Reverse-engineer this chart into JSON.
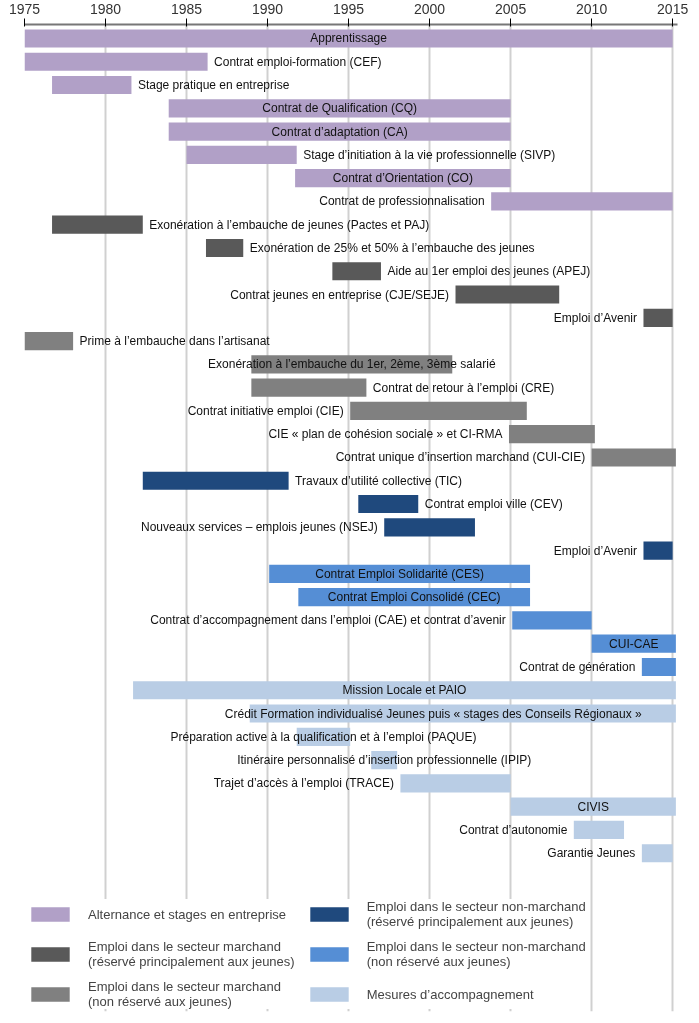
{
  "chart_data": {
    "type": "bar",
    "orientation": "horizontal",
    "categories": [
      "Apprentissage",
      "Contrat emploi-formation (CEF)",
      "Stage pratique en entreprise",
      "Contrat de Qualification (CQ)",
      "Contrat d’adaptation (CA)",
      "Stage d’initiation à la vie professionnelle (SIVP)",
      "Contrat d’Orientation (CO)",
      "Contrat de professionnalisation",
      "Exonération à l’embauche de jeunes (Pactes et PAJ)",
      "Exonération de 25% et 50% à l’embauche des jeunes",
      "Aide au 1er emploi des jeunes (APEJ)",
      "Contrat jeunes en entreprise (CJE/SEJE)",
      "Emploi d’Avenir",
      "Prime à l’embauche dans l’artisanat",
      "Exonération à l’embauche du 1er, 2ème, 3ème salarié",
      "Contrat de retour à l’emploi (CRE)",
      "Contrat initiative emploi (CIE)",
      "CIE « plan de cohésion sociale » et CI-RMA",
      "Contrat unique d’insertion marchand (CUI-CIE)",
      "Travaux d’utilité collective (TIC)",
      "Contrat emploi ville (CEV)",
      "Nouveaux services – emplois jeunes (NSEJ)",
      "Emploi d’Avenir",
      "Contrat Emploi Solidarité (CES)",
      "Contrat Emploi Consolidé (CEC)",
      "Contrat d’accompagnement dans l’emploi (CAE) et contrat d’avenir",
      "CUI-CAE",
      "Contrat de génération",
      "Mission Locale et PAIO",
      "Crédit Formation individualisé Jeunes puis « stages des Conseils Régionaux »",
      "Préparation active à la qualification et à l’emploi (PAQUE)",
      "Itinéraire personnalisé d’insertion professionnelle (IPIP)",
      "Trajet d’accès à l’emploi (TRACE)",
      "CIVIS",
      "Contrat d’autonomie",
      "Garantie Jeunes"
    ],
    "series": [
      {
        "name": "Alternance et stages en entreprise",
        "color": "#b1a0c7",
        "base": [
          1975,
          1975,
          1976.7,
          1983.9,
          1983.9,
          1985.0,
          1991.7,
          2003.8,
          null,
          null,
          null,
          null,
          null,
          null,
          null,
          null,
          null,
          null,
          null,
          null,
          null,
          null,
          null,
          null,
          null,
          null,
          null,
          null,
          null,
          null,
          null,
          null,
          null,
          null,
          null,
          null
        ],
        "values": [
          40,
          11.3,
          4.9,
          21.1,
          21.1,
          6.8,
          13.3,
          11.2,
          null,
          null,
          null,
          null,
          null,
          null,
          null,
          null,
          null,
          null,
          null,
          null,
          null,
          null,
          null,
          null,
          null,
          null,
          null,
          null,
          null,
          null,
          null,
          null,
          null,
          null,
          null,
          null
        ]
      },
      {
        "name": "Emploi dans le secteur marchand (réservé principalement aux jeunes)",
        "color": "#595959",
        "base": [
          null,
          null,
          null,
          null,
          null,
          null,
          null,
          null,
          1976.7,
          1986.2,
          1994.0,
          2001.6,
          2013.2,
          null,
          null,
          null,
          null,
          null,
          null,
          null,
          null,
          null,
          null,
          null,
          null,
          null,
          null,
          null,
          null,
          null,
          null,
          null,
          null,
          null,
          null,
          null
        ],
        "values": [
          null,
          null,
          null,
          null,
          null,
          null,
          null,
          null,
          5.6,
          2.3,
          3.0,
          6.4,
          1.8,
          null,
          null,
          null,
          null,
          null,
          null,
          null,
          null,
          null,
          null,
          null,
          null,
          null,
          null,
          null,
          null,
          null,
          null,
          null,
          null,
          null,
          null,
          null
        ]
      },
      {
        "name": "Emploi dans le secteur marchand (non réservé aux jeunes)",
        "color": "#808080",
        "base": [
          null,
          null,
          null,
          null,
          null,
          null,
          null,
          null,
          null,
          null,
          null,
          null,
          null,
          1975,
          1989.0,
          1989.0,
          1995.1,
          2004.9,
          2010.0,
          null,
          null,
          null,
          null,
          null,
          null,
          null,
          null,
          null,
          null,
          null,
          null,
          null,
          null,
          null,
          null,
          null
        ],
        "values": [
          null,
          null,
          null,
          null,
          null,
          null,
          null,
          null,
          null,
          null,
          null,
          null,
          null,
          3.0,
          12.4,
          7.1,
          10.9,
          5.3,
          5.2,
          null,
          null,
          null,
          null,
          null,
          null,
          null,
          null,
          null,
          null,
          null,
          null,
          null,
          null,
          null,
          null,
          null
        ]
      },
      {
        "name": "Emploi dans le secteur non-marchand (réservé principalement aux jeunes)",
        "color": "#1f497d",
        "base": [
          null,
          null,
          null,
          null,
          null,
          null,
          null,
          null,
          null,
          null,
          null,
          null,
          null,
          null,
          null,
          null,
          null,
          null,
          null,
          1982.3,
          1995.6,
          1997.2,
          2013.2,
          null,
          null,
          null,
          null,
          null,
          null,
          null,
          null,
          null,
          null,
          null,
          null,
          null
        ],
        "values": [
          null,
          null,
          null,
          null,
          null,
          null,
          null,
          null,
          null,
          null,
          null,
          null,
          null,
          null,
          null,
          null,
          null,
          null,
          null,
          9.0,
          3.7,
          5.6,
          1.8,
          null,
          null,
          null,
          null,
          null,
          null,
          null,
          null,
          null,
          null,
          null,
          null,
          null
        ]
      },
      {
        "name": "Emploi dans le secteur non-marchand (non réservé aux jeunes)",
        "color": "#558ed5",
        "base": [
          null,
          null,
          null,
          null,
          null,
          null,
          null,
          null,
          null,
          null,
          null,
          null,
          null,
          null,
          null,
          null,
          null,
          null,
          null,
          null,
          null,
          null,
          null,
          1990.1,
          1991.9,
          2005.1,
          2010.0,
          2013.1,
          null,
          null,
          null,
          null,
          null,
          null,
          null,
          null
        ],
        "values": [
          null,
          null,
          null,
          null,
          null,
          null,
          null,
          null,
          null,
          null,
          null,
          null,
          null,
          null,
          null,
          null,
          null,
          null,
          null,
          null,
          null,
          null,
          null,
          16.1,
          14.3,
          4.9,
          5.2,
          2.1,
          null,
          null,
          null,
          null,
          null,
          null,
          null,
          null
        ]
      },
      {
        "name": "Mesures d’accompagnement",
        "color": "#b9cde5",
        "base": [
          null,
          null,
          null,
          null,
          null,
          null,
          null,
          null,
          null,
          null,
          null,
          null,
          null,
          null,
          null,
          null,
          null,
          null,
          null,
          null,
          null,
          null,
          null,
          null,
          null,
          null,
          null,
          null,
          1981.7,
          1988.9,
          1991.8,
          1996.4,
          1998.2,
          2005.0,
          2008.9,
          2013.1
        ],
        "values": [
          null,
          null,
          null,
          null,
          null,
          null,
          null,
          null,
          null,
          null,
          null,
          null,
          null,
          null,
          null,
          null,
          null,
          null,
          null,
          null,
          null,
          null,
          null,
          null,
          null,
          null,
          null,
          null,
          33.5,
          26.3,
          3.3,
          1.6,
          6.8,
          10.2,
          3.1,
          1.9
        ]
      }
    ],
    "xlim": [
      1975,
      2015.3
    ],
    "xticks": [
      1975,
      1980,
      1985,
      1990,
      1995,
      2000,
      2005,
      2010,
      2015
    ],
    "grid": "x",
    "legend": "bottom",
    "tick_labels": "x"
  }
}
